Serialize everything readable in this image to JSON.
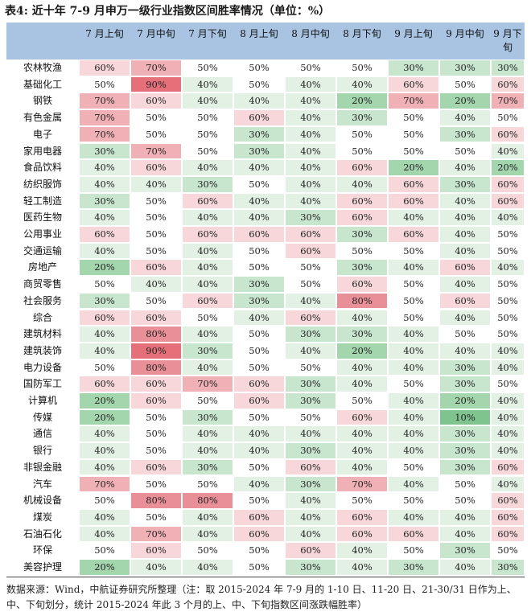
{
  "title": "表4: 近十年 7-9 月申万一级行业指数区间胜率情况（单位：%）",
  "columns": [
    "7 月上旬",
    "7 月中旬",
    "7 月下旬",
    "8 月上旬",
    "8 月中旬",
    "8 月下旬",
    "9 月上旬",
    "9 月中旬",
    "9 月下旬"
  ],
  "rows": [
    {
      "name": "农林牧渔",
      "values": [
        "60%",
        "70%",
        "50%",
        "50%",
        "50%",
        "50%",
        "30%",
        "30%",
        "30%"
      ]
    },
    {
      "name": "基础化工",
      "values": [
        "50%",
        "90%",
        "40%",
        "50%",
        "40%",
        "40%",
        "60%",
        "50%",
        "60%"
      ]
    },
    {
      "name": "钢铁",
      "values": [
        "70%",
        "60%",
        "40%",
        "40%",
        "40%",
        "20%",
        "70%",
        "20%",
        "70%"
      ]
    },
    {
      "name": "有色金属",
      "values": [
        "70%",
        "50%",
        "50%",
        "60%",
        "40%",
        "30%",
        "50%",
        "40%",
        "50%"
      ]
    },
    {
      "name": "电子",
      "values": [
        "70%",
        "50%",
        "50%",
        "30%",
        "40%",
        "50%",
        "50%",
        "30%",
        "60%"
      ]
    },
    {
      "name": "家用电器",
      "values": [
        "30%",
        "70%",
        "50%",
        "30%",
        "40%",
        "50%",
        "50%",
        "50%",
        "40%"
      ]
    },
    {
      "name": "食品饮料",
      "values": [
        "40%",
        "60%",
        "40%",
        "40%",
        "40%",
        "60%",
        "20%",
        "40%",
        "20%"
      ]
    },
    {
      "name": "纺织服饰",
      "values": [
        "40%",
        "40%",
        "30%",
        "50%",
        "40%",
        "40%",
        "60%",
        "30%",
        "60%"
      ]
    },
    {
      "name": "轻工制造",
      "values": [
        "30%",
        "50%",
        "60%",
        "40%",
        "40%",
        "60%",
        "60%",
        "40%",
        "60%"
      ]
    },
    {
      "name": "医药生物",
      "values": [
        "40%",
        "50%",
        "40%",
        "40%",
        "30%",
        "60%",
        "40%",
        "40%",
        "40%"
      ]
    },
    {
      "name": "公用事业",
      "values": [
        "60%",
        "50%",
        "60%",
        "60%",
        "60%",
        "30%",
        "60%",
        "40%",
        "50%"
      ]
    },
    {
      "name": "交通运输",
      "values": [
        "40%",
        "50%",
        "40%",
        "50%",
        "60%",
        "50%",
        "50%",
        "40%",
        "50%"
      ]
    },
    {
      "name": "房地产",
      "values": [
        "20%",
        "60%",
        "40%",
        "50%",
        "50%",
        "30%",
        "40%",
        "60%",
        "40%"
      ]
    },
    {
      "name": "商贸零售",
      "values": [
        "50%",
        "40%",
        "40%",
        "30%",
        "50%",
        "60%",
        "50%",
        "40%",
        "50%"
      ]
    },
    {
      "name": "社会服务",
      "values": [
        "30%",
        "50%",
        "60%",
        "30%",
        "40%",
        "80%",
        "50%",
        "60%",
        "50%"
      ]
    },
    {
      "name": "综合",
      "values": [
        "60%",
        "60%",
        "50%",
        "40%",
        "60%",
        "40%",
        "50%",
        "40%",
        "50%"
      ]
    },
    {
      "name": "建筑材料",
      "values": [
        "40%",
        "80%",
        "40%",
        "50%",
        "30%",
        "30%",
        "40%",
        "50%",
        "50%"
      ]
    },
    {
      "name": "建筑装饰",
      "values": [
        "40%",
        "90%",
        "30%",
        "50%",
        "40%",
        "20%",
        "40%",
        "40%",
        "40%"
      ]
    },
    {
      "name": "电力设备",
      "values": [
        "50%",
        "80%",
        "40%",
        "50%",
        "50%",
        "40%",
        "40%",
        "30%",
        "40%"
      ]
    },
    {
      "name": "国防军工",
      "values": [
        "60%",
        "60%",
        "70%",
        "60%",
        "30%",
        "40%",
        "50%",
        "30%",
        "50%"
      ]
    },
    {
      "name": "计算机",
      "values": [
        "20%",
        "60%",
        "50%",
        "60%",
        "30%",
        "50%",
        "40%",
        "20%",
        "40%"
      ]
    },
    {
      "name": "传媒",
      "values": [
        "20%",
        "50%",
        "30%",
        "50%",
        "50%",
        "60%",
        "40%",
        "10%",
        "40%"
      ]
    },
    {
      "name": "通信",
      "values": [
        "40%",
        "50%",
        "40%",
        "40%",
        "40%",
        "40%",
        "40%",
        "30%",
        "40%"
      ]
    },
    {
      "name": "银行",
      "values": [
        "40%",
        "50%",
        "40%",
        "40%",
        "30%",
        "40%",
        "40%",
        "30%",
        "40%"
      ]
    },
    {
      "name": "非银金融",
      "values": [
        "40%",
        "60%",
        "30%",
        "50%",
        "60%",
        "40%",
        "50%",
        "30%",
        "60%"
      ]
    },
    {
      "name": "汽车",
      "values": [
        "70%",
        "50%",
        "50%",
        "40%",
        "30%",
        "70%",
        "40%",
        "50%",
        "40%"
      ]
    },
    {
      "name": "机械设备",
      "values": [
        "50%",
        "80%",
        "80%",
        "50%",
        "40%",
        "50%",
        "50%",
        "50%",
        "60%"
      ]
    },
    {
      "name": "煤炭",
      "values": [
        "40%",
        "50%",
        "40%",
        "60%",
        "40%",
        "60%",
        "40%",
        "40%",
        "60%"
      ]
    },
    {
      "name": "石油石化",
      "values": [
        "40%",
        "70%",
        "40%",
        "60%",
        "40%",
        "60%",
        "60%",
        "40%",
        "60%"
      ]
    },
    {
      "name": "环保",
      "values": [
        "50%",
        "60%",
        "50%",
        "50%",
        "60%",
        "40%",
        "50%",
        "30%",
        "50%"
      ]
    },
    {
      "name": "美容护理",
      "values": [
        "20%",
        "40%",
        "40%",
        "50%",
        "30%",
        "40%",
        "30%",
        "40%",
        "30%"
      ]
    }
  ],
  "source": "数据来源：Wind，中航证券研究所整理（注：取 2015-2024 年 7-9 月的 1-10 日、11-20 日、21-30/31 日作为上、中、下旬划分，统计 2015-2024 年此 3 个月的上、中、下旬指数区间涨跌幅胜率）",
  "palette": {
    "header_bg": "#a8c4e2",
    "low_strong": "#7fc48e",
    "high_strong": "#e5707a"
  }
}
